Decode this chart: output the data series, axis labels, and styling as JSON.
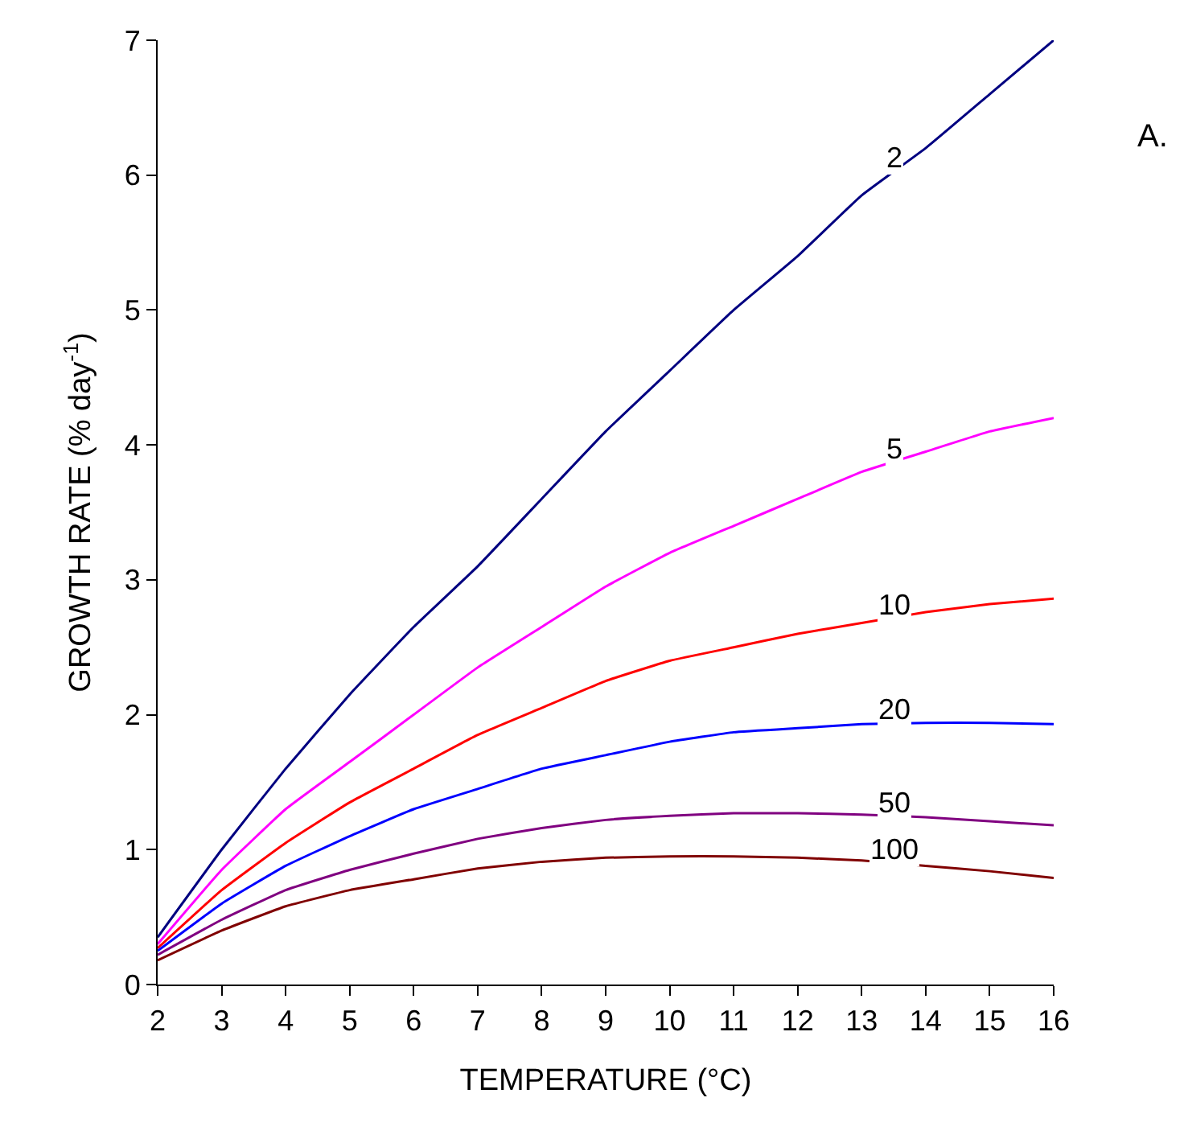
{
  "chart_data": {
    "type": "line",
    "xlabel": "TEMPERATURE (°C)",
    "ylabel": "GROWTH RATE (% day$^{-1}$)",
    "x": [
      2,
      3,
      4,
      5,
      6,
      7,
      8,
      9,
      10,
      11,
      12,
      13,
      14,
      15,
      16
    ],
    "series": [
      {
        "name": "2",
        "color": "#000080",
        "values": [
          0.35,
          1.0,
          1.6,
          2.15,
          2.65,
          3.1,
          3.6,
          4.1,
          4.55,
          5.0,
          5.4,
          5.85,
          6.2,
          6.6,
          7.0
        ]
      },
      {
        "name": "5",
        "color": "#ff00ff",
        "values": [
          0.3,
          0.85,
          1.3,
          1.65,
          2.0,
          2.35,
          2.65,
          2.95,
          3.2,
          3.4,
          3.6,
          3.8,
          3.95,
          4.1,
          4.2
        ]
      },
      {
        "name": "10",
        "color": "#ff0000",
        "values": [
          0.27,
          0.7,
          1.05,
          1.35,
          1.6,
          1.85,
          2.05,
          2.25,
          2.4,
          2.5,
          2.6,
          2.68,
          2.76,
          2.82,
          2.86
        ]
      },
      {
        "name": "20",
        "color": "#0000ff",
        "values": [
          0.25,
          0.6,
          0.88,
          1.1,
          1.3,
          1.45,
          1.6,
          1.7,
          1.8,
          1.87,
          1.9,
          1.93,
          1.94,
          1.94,
          1.93
        ]
      },
      {
        "name": "50",
        "color": "#800080",
        "values": [
          0.22,
          0.48,
          0.7,
          0.85,
          0.97,
          1.08,
          1.16,
          1.22,
          1.25,
          1.27,
          1.27,
          1.26,
          1.24,
          1.21,
          1.18
        ]
      },
      {
        "name": "100",
        "color": "#800000",
        "values": [
          0.18,
          0.4,
          0.58,
          0.7,
          0.78,
          0.86,
          0.91,
          0.94,
          0.95,
          0.95,
          0.94,
          0.92,
          0.88,
          0.84,
          0.79
        ]
      }
    ],
    "xlim": [
      2,
      16
    ],
    "xticks": [
      2,
      3,
      4,
      5,
      6,
      7,
      8,
      9,
      10,
      11,
      12,
      13,
      14,
      15,
      16
    ],
    "ylim": [
      0,
      7
    ],
    "yticks": [
      0,
      1,
      2,
      3,
      4,
      5,
      6,
      7
    ],
    "grid": false,
    "legend": false,
    "marker": "none",
    "line_style": "solid",
    "annotations": [
      "A."
    ]
  }
}
